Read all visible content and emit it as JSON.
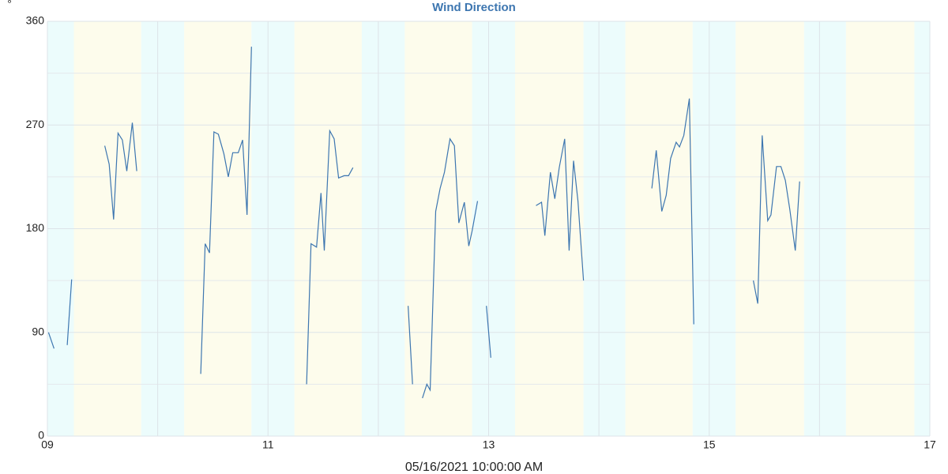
{
  "chart_data": {
    "type": "line",
    "title": "Wind Direction",
    "y_label": "°",
    "x_label": "05/16/2021 10:00:00 AM",
    "x": [
      9.01,
      9.06,
      null,
      9.18,
      9.22,
      null,
      9.52,
      9.56,
      9.6,
      9.64,
      9.68,
      9.72,
      9.77,
      9.81,
      null,
      10.39,
      10.43,
      10.47,
      10.51,
      10.55,
      10.6,
      10.64,
      10.68,
      10.73,
      10.77,
      10.81,
      10.85,
      null,
      11.35,
      11.39,
      11.44,
      11.48,
      11.51,
      11.56,
      11.6,
      11.64,
      11.69,
      11.73,
      11.77,
      null,
      12.27,
      12.31,
      null,
      12.4,
      12.44,
      12.47,
      12.52,
      12.56,
      12.6,
      12.65,
      12.69,
      12.73,
      12.78,
      12.82,
      12.85,
      12.9,
      null,
      12.98,
      13.02,
      null,
      13.43,
      13.48,
      13.51,
      13.56,
      13.6,
      13.64,
      13.69,
      13.73,
      13.77,
      13.81,
      13.86,
      null,
      14.48,
      14.52,
      14.57,
      14.61,
      14.65,
      14.7,
      14.73,
      14.77,
      14.82,
      14.86,
      null,
      15.4,
      15.44,
      15.48,
      15.53,
      15.56,
      15.61,
      15.65,
      15.69,
      15.73,
      15.78,
      15.82
    ],
    "series": [
      {
        "name": "Wind Direction",
        "color": "#3d76b0",
        "values": [
          90,
          76,
          null,
          79,
          136,
          null,
          252,
          236,
          188,
          263,
          257,
          230,
          272,
          230,
          null,
          54,
          167,
          159,
          264,
          262,
          245,
          225,
          246,
          246,
          257,
          192,
          338,
          null,
          45,
          167,
          164,
          211,
          161,
          265,
          258,
          224,
          226,
          226,
          233,
          null,
          113,
          45,
          null,
          33,
          45,
          40,
          195,
          215,
          229,
          258,
          252,
          185,
          203,
          165,
          178,
          204,
          null,
          113,
          68,
          null,
          200,
          203,
          174,
          229,
          206,
          233,
          258,
          161,
          239,
          204,
          135,
          null,
          215,
          248,
          195,
          209,
          241,
          255,
          251,
          261,
          293,
          97,
          null,
          135,
          115,
          261,
          187,
          192,
          234,
          234,
          222,
          197,
          161,
          221
        ]
      }
    ],
    "xlim": [
      9,
      17
    ],
    "ylim": [
      0,
      360
    ],
    "xticks": [
      {
        "value": 9,
        "label": "09"
      },
      11,
      13,
      15,
      17
    ],
    "minor_xticks": [
      10,
      12,
      14,
      16
    ],
    "yticks": [
      0,
      90,
      180,
      270,
      360
    ],
    "minor_yticks": [
      45,
      135,
      225,
      315
    ],
    "grid": true,
    "shading": [
      {
        "from": 9,
        "to": 9.24,
        "color": "#ecfcfc"
      },
      {
        "from": 9.24,
        "to": 9.85,
        "color": "#fdfcec"
      },
      {
        "from": 9.85,
        "to": 10.24,
        "color": "#ecfcfc"
      },
      {
        "from": 10.24,
        "to": 10.85,
        "color": "#fdfcec"
      },
      {
        "from": 10.85,
        "to": 11.24,
        "color": "#ecfcfc"
      },
      {
        "from": 11.24,
        "to": 11.85,
        "color": "#fdfcec"
      },
      {
        "from": 11.85,
        "to": 12.24,
        "color": "#ecfcfc"
      },
      {
        "from": 12.24,
        "to": 12.85,
        "color": "#fdfcec"
      },
      {
        "from": 12.85,
        "to": 13.24,
        "color": "#ecfcfc"
      },
      {
        "from": 13.24,
        "to": 13.86,
        "color": "#fdfcec"
      },
      {
        "from": 13.86,
        "to": 14.24,
        "color": "#ecfcfc"
      },
      {
        "from": 14.24,
        "to": 14.85,
        "color": "#fdfcec"
      },
      {
        "from": 14.85,
        "to": 15.24,
        "color": "#ecfcfc"
      },
      {
        "from": 15.24,
        "to": 15.86,
        "color": "#fdfcec"
      },
      {
        "from": 15.86,
        "to": 16.24,
        "color": "#ecfcfc"
      },
      {
        "from": 16.24,
        "to": 16.86,
        "color": "#fdfcec"
      },
      {
        "from": 16.86,
        "to": 17,
        "color": "#ecfcfc"
      }
    ]
  }
}
